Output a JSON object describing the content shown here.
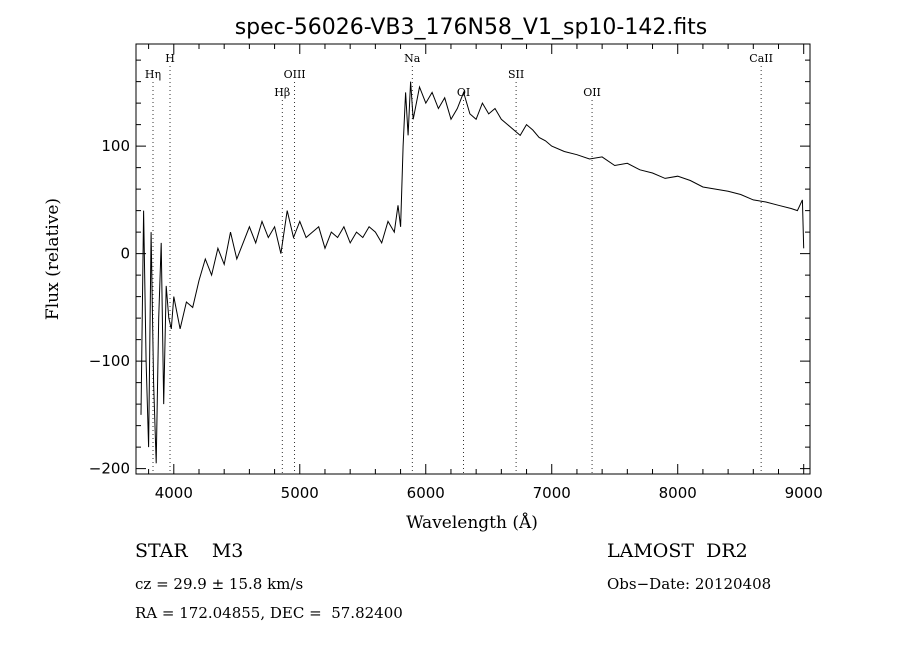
{
  "chart_data": {
    "type": "line",
    "title": "spec-56026-VB3_176N58_V1_sp10-142.fits",
    "xlabel": "Wavelength (Å)",
    "ylabel": "Flux (relative)",
    "xlim": [
      3700,
      9050
    ],
    "ylim": [
      -205,
      195
    ],
    "xticks": [
      4000,
      5000,
      6000,
      7000,
      8000,
      9000
    ],
    "xtick_labels": [
      "4000",
      "5000",
      "6000",
      "7000",
      "8000",
      "9000"
    ],
    "yticks": [
      -200,
      -100,
      0,
      100
    ],
    "ytick_labels": [
      "−200",
      "−100",
      "0",
      "100"
    ],
    "grid": false,
    "series": [
      {
        "color": "#000000",
        "x": [
          3740,
          3760,
          3780,
          3800,
          3820,
          3840,
          3860,
          3880,
          3900,
          3920,
          3940,
          3960,
          3980,
          4000,
          4050,
          4100,
          4150,
          4200,
          4250,
          4300,
          4350,
          4400,
          4450,
          4500,
          4550,
          4600,
          4650,
          4700,
          4750,
          4800,
          4850,
          4900,
          4950,
          5000,
          5050,
          5100,
          5150,
          5200,
          5250,
          5300,
          5350,
          5400,
          5450,
          5500,
          5550,
          5600,
          5650,
          5700,
          5750,
          5780,
          5800,
          5820,
          5840,
          5860,
          5880,
          5900,
          5950,
          6000,
          6050,
          6100,
          6150,
          6200,
          6250,
          6300,
          6350,
          6400,
          6450,
          6500,
          6550,
          6600,
          6650,
          6700,
          6750,
          6800,
          6850,
          6900,
          6950,
          7000,
          7100,
          7200,
          7300,
          7400,
          7500,
          7600,
          7700,
          7800,
          7900,
          8000,
          8100,
          8200,
          8300,
          8400,
          8500,
          8600,
          8700,
          8800,
          8900,
          8950,
          8990,
          9000
        ],
        "y": [
          -150,
          40,
          -100,
          -180,
          20,
          -120,
          -195,
          -60,
          10,
          -140,
          -30,
          -60,
          -70,
          -40,
          -70,
          -45,
          -50,
          -25,
          -5,
          -20,
          5,
          -10,
          20,
          -5,
          10,
          25,
          10,
          30,
          15,
          25,
          0,
          40,
          15,
          30,
          15,
          20,
          25,
          5,
          20,
          15,
          25,
          10,
          20,
          15,
          25,
          20,
          10,
          30,
          20,
          45,
          25,
          100,
          150,
          110,
          160,
          125,
          155,
          140,
          150,
          135,
          145,
          125,
          135,
          150,
          130,
          125,
          140,
          130,
          135,
          125,
          120,
          115,
          110,
          120,
          115,
          108,
          105,
          100,
          95,
          92,
          88,
          90,
          82,
          84,
          78,
          75,
          70,
          72,
          68,
          62,
          60,
          58,
          55,
          50,
          48,
          45,
          42,
          40,
          50,
          5
        ]
      }
    ],
    "annotations": [
      {
        "label": "H",
        "x": 3970
      },
      {
        "label": "Hη",
        "x": 3835
      },
      {
        "label": "OIII",
        "x": 4959
      },
      {
        "label": "Hβ",
        "x": 4861
      },
      {
        "label": "Na",
        "x": 5893
      },
      {
        "label": "OI",
        "x": 6300
      },
      {
        "label": "SII",
        "x": 6717
      },
      {
        "label": "OII",
        "x": 7320
      },
      {
        "label": "CaII",
        "x": 8662
      }
    ]
  },
  "info": {
    "classification": "STAR    M3",
    "survey": "LAMOST  DR2",
    "cz": "cz = 29.9 ± 15.8 km/s",
    "obs_date": "Obs−Date: 20120408",
    "radec": "RA = 172.04855, DEC =  57.82400"
  }
}
